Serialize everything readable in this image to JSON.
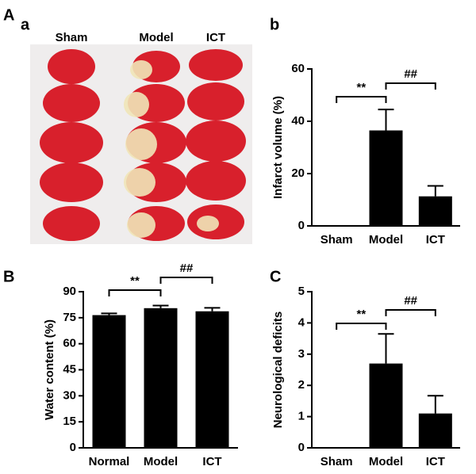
{
  "figure": {
    "panel_labels": [
      "A",
      "a",
      "b",
      "B",
      "C"
    ],
    "photo_labels": [
      "Sham",
      "Model",
      "ICT"
    ]
  },
  "chart_data": [
    {
      "type": "bar",
      "y_label": "Infarct volume (%)",
      "categories": [
        "Sham",
        "Model",
        "ICT"
      ],
      "values": [
        0,
        36.5,
        11.3
      ],
      "errors": [
        null,
        8,
        4
      ],
      "color": "#000000",
      "ylim": [
        0,
        60
      ],
      "yticks": [
        0,
        20,
        40,
        60
      ],
      "annotations": [
        {
          "text": "**",
          "between": [
            "Sham",
            "Model"
          ]
        },
        {
          "text": "##",
          "between": [
            "Model",
            "ICT"
          ]
        }
      ]
    },
    {
      "type": "bar",
      "y_label": "Water content (%)",
      "categories": [
        "Normal",
        "Model",
        "ICT"
      ],
      "values": [
        76.5,
        80.5,
        78.7
      ],
      "errors": [
        1,
        1.5,
        2
      ],
      "color": "#000000",
      "ylim": [
        0,
        90
      ],
      "yticks": [
        0,
        15,
        30,
        45,
        60,
        75,
        90
      ],
      "annotations": [
        {
          "text": "**",
          "between": [
            "Normal",
            "Model"
          ]
        },
        {
          "text": "##",
          "between": [
            "Model",
            "ICT"
          ]
        }
      ]
    },
    {
      "type": "bar",
      "y_label": "Neurological deficits",
      "categories": [
        "Sham",
        "Model",
        "ICT"
      ],
      "values": [
        0,
        2.7,
        1.1
      ],
      "errors": [
        null,
        0.95,
        0.57
      ],
      "color": "#000000",
      "ylim": [
        0,
        5
      ],
      "yticks": [
        0,
        1,
        2,
        3,
        4,
        5
      ],
      "annotations": [
        {
          "text": "**",
          "between": [
            "Sham",
            "Model"
          ]
        },
        {
          "text": "##",
          "between": [
            "Model",
            "ICT"
          ]
        }
      ]
    }
  ]
}
